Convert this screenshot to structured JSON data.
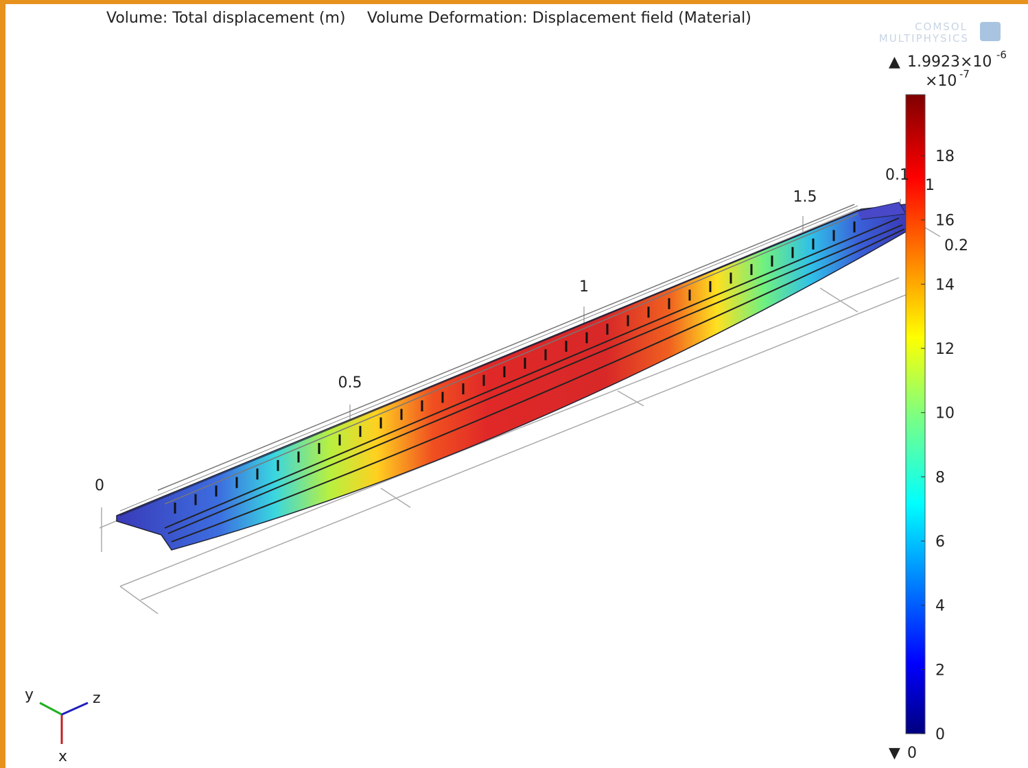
{
  "header": {
    "plot_title": "Volume: Total displacement (m)",
    "deformation_title": "Volume Deformation: Displacement field (Material)"
  },
  "logo": {
    "line1": "COMSOL",
    "line2": "MULTIPHYSICS"
  },
  "colorbar": {
    "max_label": "1.9923×10",
    "max_exponent": "-6",
    "scale_label": "×10",
    "scale_exponent": "-7",
    "ticks": [
      0,
      2,
      4,
      6,
      8,
      10,
      12,
      14,
      16,
      18
    ],
    "min_label": "0"
  },
  "plot_axes": {
    "x_labels": [
      0,
      0.5,
      1,
      1.5
    ],
    "y_labels": [
      0.1,
      0.2
    ],
    "z_label": "1"
  },
  "triad": {
    "x": "x",
    "y": "y",
    "z": "z"
  }
}
